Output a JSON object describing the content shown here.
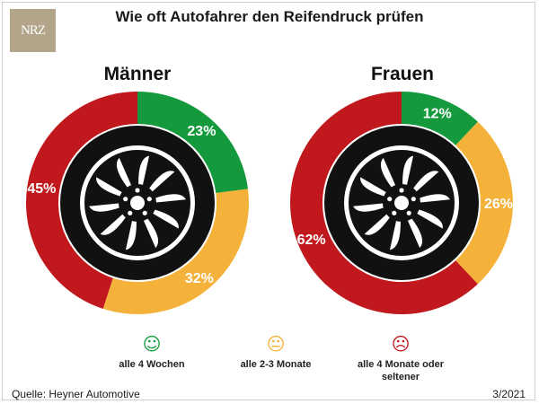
{
  "title": "Wie oft Autofahrer den Reifendruck prüfen",
  "logo": "NRZ",
  "source": "Quelle: Heyner Automotive",
  "date": "3/2021",
  "colors": {
    "green": "#149a3c",
    "orange": "#f5b23a",
    "red": "#c0181c",
    "tire": "#111111"
  },
  "legend": [
    {
      "label": "alle 4 Wochen",
      "icon": "smile-icon",
      "glyph": "☺",
      "color": "#149a3c"
    },
    {
      "label": "alle 2-3 Monate",
      "icon": "neutral-face-icon",
      "glyph": "😐",
      "color": "#f5b23a"
    },
    {
      "label": "alle 4 Monate oder seltener",
      "icon": "frown-icon",
      "glyph": "☹",
      "color": "#c0181c"
    }
  ],
  "chart_data": [
    {
      "type": "pie",
      "title": "Männer",
      "categories": [
        "alle 4 Wochen",
        "alle 2-3 Monate",
        "alle 4 Monate oder seltener"
      ],
      "values": [
        23,
        32,
        45
      ],
      "labels": [
        "23%",
        "32%",
        "45%"
      ],
      "colors": [
        "#149a3c",
        "#f5b23a",
        "#c0181c"
      ]
    },
    {
      "type": "pie",
      "title": "Frauen",
      "categories": [
        "alle 4 Wochen",
        "alle 2-3 Monate",
        "alle 4 Monate oder seltener"
      ],
      "values": [
        12,
        26,
        62
      ],
      "labels": [
        "12%",
        "26%",
        "62%"
      ],
      "colors": [
        "#149a3c",
        "#f5b23a",
        "#c0181c"
      ]
    }
  ]
}
